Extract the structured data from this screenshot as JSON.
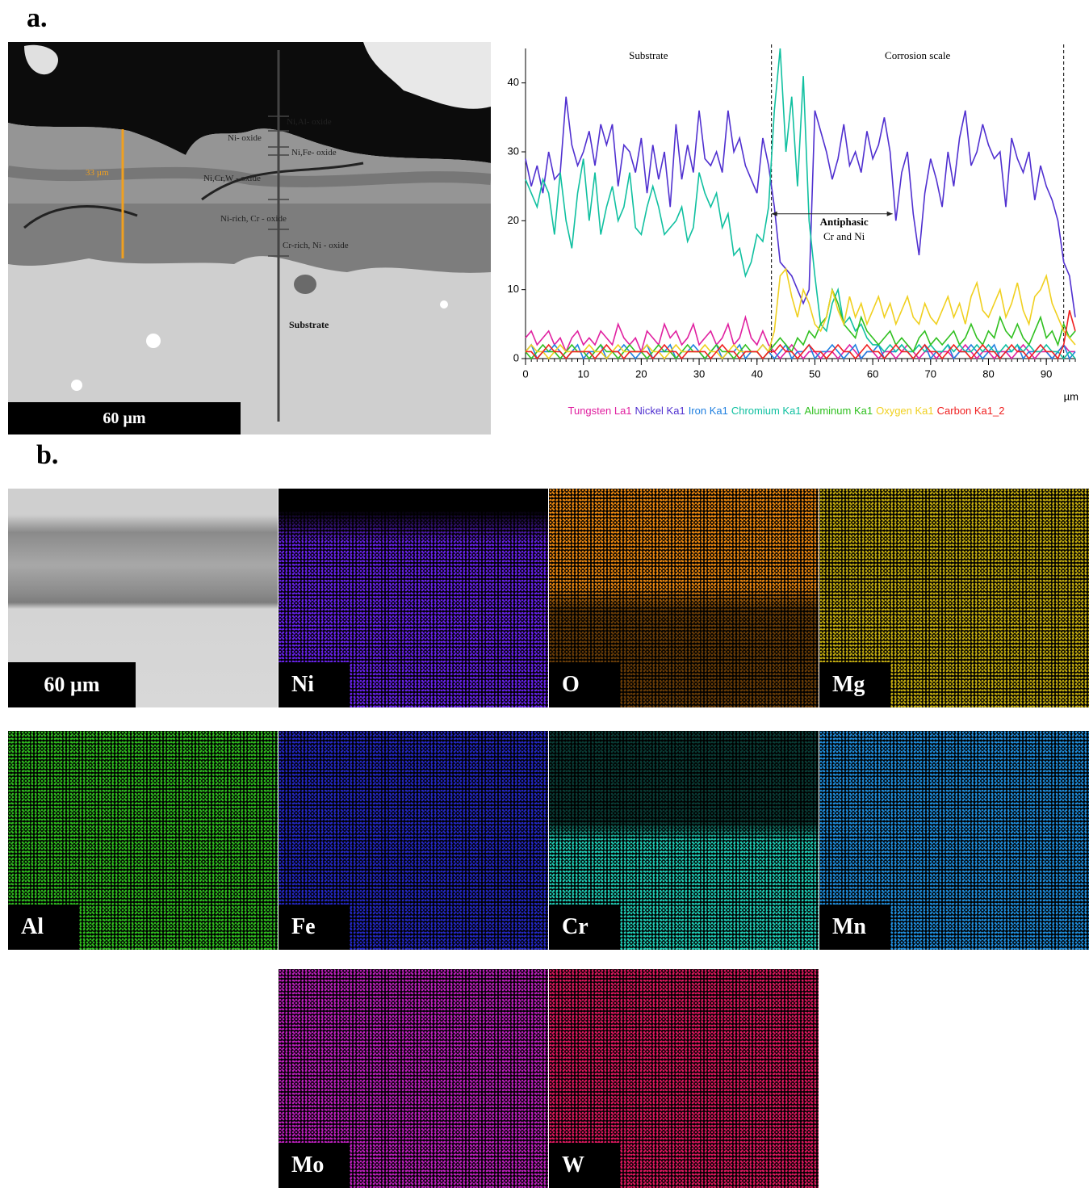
{
  "panel_a": {
    "label": "a.",
    "sem": {
      "scale_bar": "60 µm",
      "thickness": "33 µm",
      "layers": [
        "Ni,Al- oxide",
        "Ni- oxide",
        "Ni,Fe- oxide",
        "Ni,Cr,W - oxide",
        "Ni-rich, Cr - oxide",
        "Cr-rich, Ni - oxide"
      ],
      "substrate": "Substrate"
    }
  },
  "chart_data": {
    "type": "line",
    "x_label": "µm",
    "annotations": {
      "left_region": "Substrate",
      "right_region": "Corrosion scale",
      "arrow_title": "Antiphasic",
      "arrow_text": "Cr and Ni"
    },
    "boundaries": [
      42.5,
      93
    ],
    "xlim": [
      0,
      95
    ],
    "ylim": [
      0,
      45
    ],
    "xticks": [
      0,
      10,
      20,
      30,
      40,
      50,
      60,
      70,
      80,
      90
    ],
    "yticks": [
      0,
      10,
      20,
      30,
      40
    ],
    "x": [
      0,
      1,
      2,
      3,
      4,
      5,
      6,
      7,
      8,
      9,
      10,
      11,
      12,
      13,
      14,
      15,
      16,
      17,
      18,
      19,
      20,
      21,
      22,
      23,
      24,
      25,
      26,
      27,
      28,
      29,
      30,
      31,
      32,
      33,
      34,
      35,
      36,
      37,
      38,
      39,
      40,
      41,
      42,
      43,
      44,
      45,
      46,
      47,
      48,
      49,
      50,
      51,
      52,
      53,
      54,
      55,
      56,
      57,
      58,
      59,
      60,
      61,
      62,
      63,
      64,
      65,
      66,
      67,
      68,
      69,
      70,
      71,
      72,
      73,
      74,
      75,
      76,
      77,
      78,
      79,
      80,
      81,
      82,
      83,
      84,
      85,
      86,
      87,
      88,
      89,
      90,
      91,
      92,
      93,
      94,
      95
    ],
    "series": [
      {
        "name": "Tungsten La1",
        "color": "#e020a0",
        "values": [
          3,
          4,
          2,
          3,
          4,
          2,
          3,
          1,
          3,
          4,
          2,
          3,
          2,
          4,
          3,
          2,
          5,
          3,
          2,
          3,
          1,
          4,
          3,
          2,
          5,
          3,
          4,
          2,
          3,
          5,
          2,
          3,
          4,
          2,
          3,
          5,
          2,
          3,
          6,
          3,
          2,
          4,
          2,
          1,
          0,
          1,
          2,
          1,
          0,
          1,
          1,
          0,
          1,
          1,
          0,
          1,
          2,
          1,
          0,
          1,
          1,
          0,
          1,
          1,
          0,
          1,
          2,
          1,
          0,
          1,
          1,
          0,
          1,
          1,
          0,
          1,
          2,
          1,
          0,
          1,
          1,
          0,
          1,
          1,
          0,
          1,
          2,
          1,
          0,
          1,
          1,
          0,
          1,
          2,
          1,
          1
        ]
      },
      {
        "name": "Nickel Ka1",
        "color": "#5030d0",
        "values": [
          29,
          25,
          28,
          24,
          30,
          26,
          27,
          38,
          31,
          28,
          30,
          33,
          28,
          34,
          31,
          34,
          25,
          31,
          30,
          27,
          32,
          24,
          31,
          26,
          30,
          22,
          34,
          26,
          31,
          27,
          36,
          29,
          28,
          30,
          27,
          36,
          30,
          32,
          28,
          26,
          24,
          32,
          28,
          22,
          14,
          13,
          12,
          10,
          8,
          10,
          36,
          33,
          30,
          26,
          29,
          34,
          28,
          30,
          27,
          33,
          29,
          31,
          35,
          30,
          20,
          27,
          30,
          21,
          15,
          24,
          29,
          26,
          22,
          30,
          25,
          32,
          36,
          28,
          30,
          34,
          31,
          29,
          30,
          22,
          32,
          29,
          27,
          30,
          23,
          28,
          25,
          23,
          20,
          14,
          12,
          6
        ]
      },
      {
        "name": "Iron Ka1",
        "color": "#2080e0",
        "values": [
          1,
          2,
          0,
          1,
          1,
          2,
          1,
          0,
          1,
          2,
          0,
          1,
          1,
          2,
          0,
          1,
          1,
          2,
          1,
          0,
          1,
          2,
          0,
          1,
          1,
          2,
          0,
          1,
          1,
          2,
          1,
          0,
          1,
          2,
          0,
          1,
          1,
          2,
          0,
          1,
          1,
          2,
          1,
          0,
          1,
          2,
          0,
          1,
          1,
          2,
          0,
          1,
          1,
          2,
          1,
          0,
          1,
          2,
          0,
          1,
          1,
          2,
          0,
          1,
          1,
          2,
          1,
          0,
          1,
          2,
          0,
          1,
          1,
          2,
          0,
          1,
          1,
          2,
          1,
          0,
          1,
          2,
          0,
          1,
          1,
          2,
          0,
          1,
          1,
          2,
          1,
          0,
          1,
          2,
          0,
          1
        ]
      },
      {
        "name": "Chromium Ka1",
        "color": "#10c0a0",
        "values": [
          26,
          24,
          22,
          26,
          24,
          18,
          27,
          20,
          16,
          24,
          29,
          20,
          27,
          18,
          22,
          25,
          20,
          22,
          27,
          19,
          18,
          22,
          25,
          22,
          18,
          19,
          20,
          22,
          17,
          19,
          27,
          24,
          22,
          24,
          19,
          21,
          15,
          16,
          12,
          14,
          18,
          17,
          22,
          36,
          45,
          30,
          38,
          25,
          41,
          20,
          12,
          5,
          4,
          8,
          10,
          5,
          6,
          4,
          5,
          3,
          2,
          2,
          1,
          2,
          1,
          2,
          1,
          1,
          2,
          1,
          2,
          1,
          1,
          2,
          1,
          2,
          1,
          1,
          2,
          1,
          2,
          1,
          1,
          2,
          1,
          2,
          1,
          2,
          1,
          1,
          2,
          1,
          1,
          0,
          1,
          0
        ]
      },
      {
        "name": "Aluminum Ka1",
        "color": "#30c020",
        "values": [
          1,
          0,
          1,
          2,
          1,
          1,
          0,
          1,
          2,
          1,
          1,
          0,
          1,
          2,
          1,
          1,
          0,
          1,
          2,
          1,
          1,
          0,
          1,
          2,
          1,
          1,
          0,
          1,
          2,
          1,
          1,
          0,
          1,
          2,
          1,
          1,
          0,
          1,
          2,
          1,
          1,
          0,
          1,
          2,
          3,
          2,
          1,
          3,
          2,
          4,
          3,
          5,
          6,
          10,
          8,
          5,
          4,
          3,
          6,
          4,
          3,
          2,
          3,
          4,
          2,
          3,
          2,
          1,
          3,
          4,
          2,
          3,
          2,
          3,
          4,
          2,
          3,
          5,
          3,
          2,
          4,
          3,
          6,
          4,
          3,
          5,
          3,
          2,
          4,
          6,
          3,
          4,
          2,
          5,
          3,
          4
        ]
      },
      {
        "name": "Oxygen Ka1",
        "color": "#f0d020",
        "values": [
          1,
          2,
          1,
          1,
          0,
          1,
          2,
          1,
          1,
          1,
          1,
          2,
          1,
          1,
          0,
          1,
          2,
          1,
          1,
          1,
          1,
          2,
          1,
          1,
          0,
          1,
          2,
          1,
          1,
          1,
          1,
          2,
          1,
          1,
          0,
          1,
          2,
          1,
          1,
          1,
          1,
          2,
          1,
          4,
          12,
          13,
          9,
          6,
          10,
          8,
          5,
          4,
          6,
          10,
          7,
          5,
          9,
          6,
          8,
          5,
          7,
          9,
          6,
          8,
          5,
          7,
          9,
          6,
          5,
          8,
          6,
          5,
          7,
          9,
          6,
          8,
          5,
          9,
          11,
          7,
          6,
          8,
          10,
          6,
          8,
          11,
          7,
          5,
          9,
          10,
          12,
          8,
          6,
          4,
          3,
          2
        ]
      },
      {
        "name": "Carbon Ka1_2",
        "color": "#f02020",
        "values": [
          1,
          1,
          0,
          1,
          2,
          1,
          1,
          0,
          1,
          1,
          1,
          1,
          0,
          1,
          2,
          1,
          1,
          0,
          1,
          1,
          1,
          1,
          0,
          1,
          2,
          1,
          1,
          0,
          1,
          1,
          1,
          1,
          0,
          1,
          2,
          1,
          1,
          0,
          1,
          1,
          1,
          0,
          1,
          1,
          2,
          1,
          1,
          0,
          1,
          2,
          1,
          1,
          0,
          1,
          2,
          1,
          1,
          0,
          1,
          2,
          1,
          1,
          0,
          1,
          2,
          1,
          1,
          0,
          1,
          2,
          1,
          1,
          0,
          1,
          2,
          1,
          1,
          0,
          1,
          2,
          1,
          1,
          0,
          1,
          2,
          1,
          1,
          0,
          1,
          2,
          1,
          1,
          0,
          2,
          7,
          4
        ]
      }
    ]
  },
  "panel_b": {
    "label": "b.",
    "scale_bar": "60 µm",
    "maps": [
      {
        "element": "Ni",
        "color": "#6a22f0"
      },
      {
        "element": "O",
        "color": "#f08a10"
      },
      {
        "element": "Mg",
        "color": "#c8b010"
      },
      {
        "element": "Al",
        "color": "#30c020"
      },
      {
        "element": "Fe",
        "color": "#2428c8"
      },
      {
        "element": "Cr",
        "color": "#20d0b8"
      },
      {
        "element": "Mn",
        "color": "#2090e0"
      },
      {
        "element": "Mo",
        "color": "#c020c0"
      },
      {
        "element": "W",
        "color": "#e01860"
      }
    ]
  }
}
